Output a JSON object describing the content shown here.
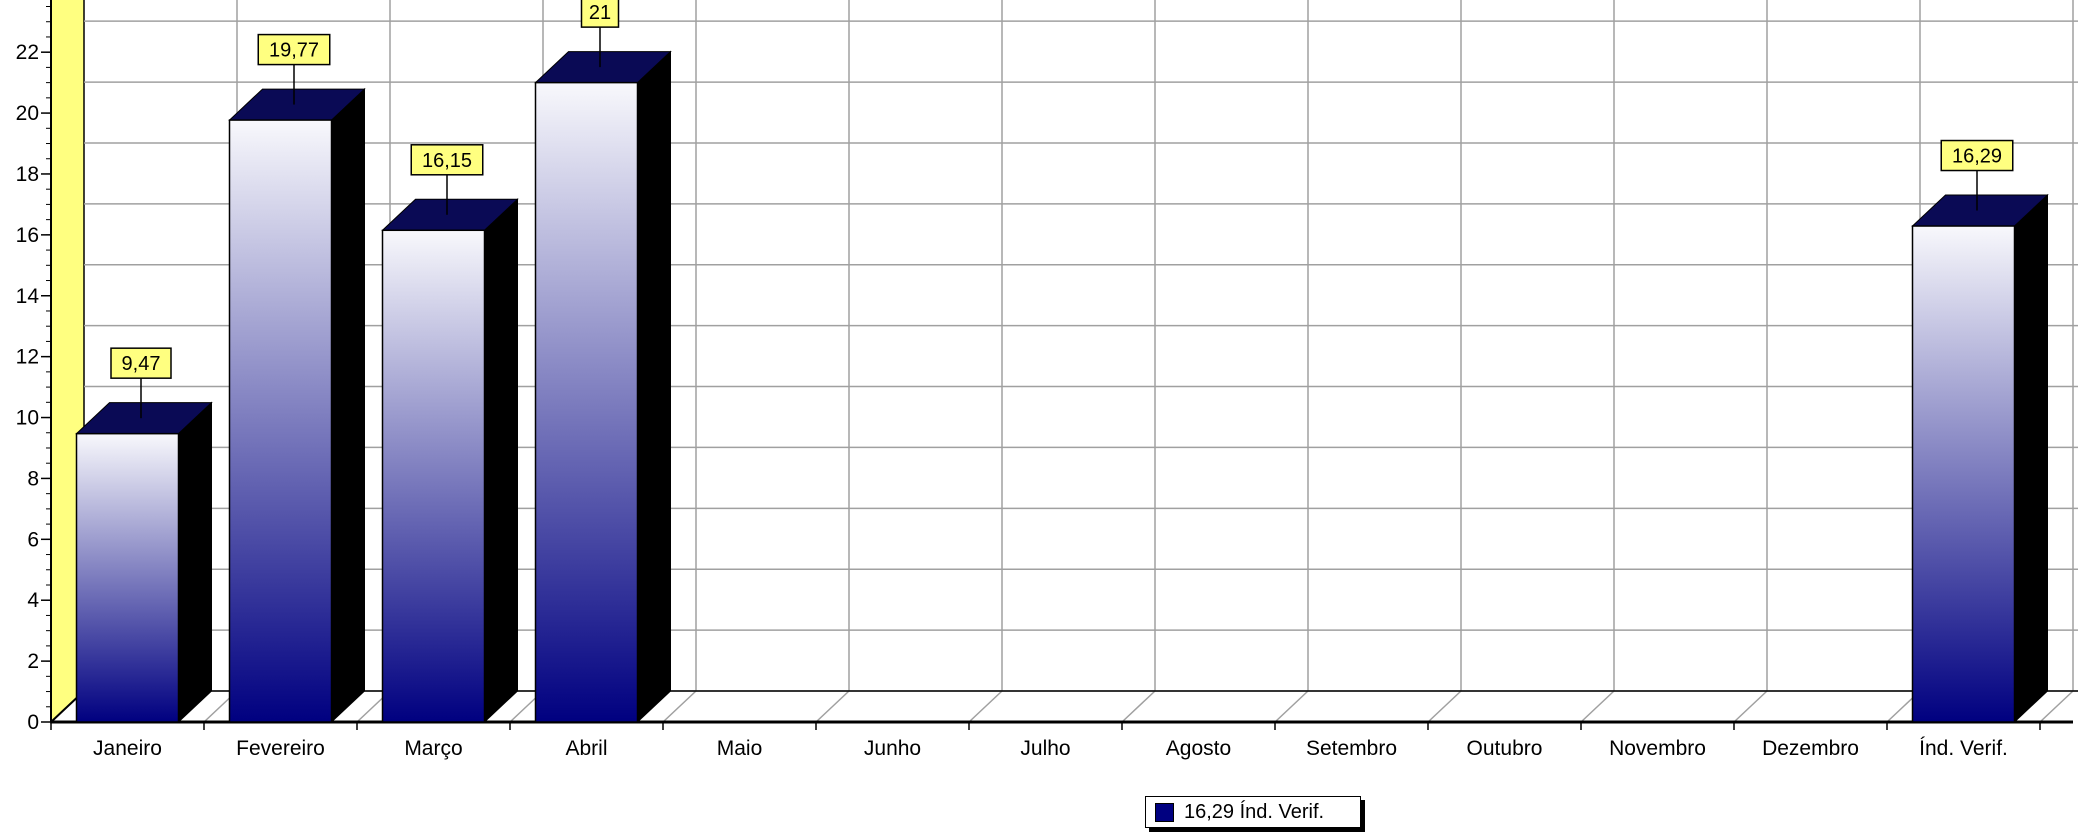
{
  "chart_data": {
    "type": "bar",
    "title": "",
    "xlabel": "",
    "ylabel": "",
    "ylim": [
      0,
      24
    ],
    "y_ticks": [
      0,
      2,
      4,
      6,
      8,
      10,
      12,
      14,
      16,
      18,
      20,
      22
    ],
    "y_tick_labels": [
      "0",
      "2",
      "4",
      "6",
      "8",
      "10",
      "12",
      "14",
      "16",
      "18",
      "20",
      "22"
    ],
    "categories": [
      "Janeiro",
      "Fevereiro",
      "Março",
      "Abril",
      "Maio",
      "Junho",
      "Julho",
      "Agosto",
      "Setembro",
      "Outubro",
      "Novembro",
      "Dezembro",
      "Índ. Verif."
    ],
    "values": [
      9.47,
      19.77,
      16.15,
      21,
      null,
      null,
      null,
      null,
      null,
      null,
      null,
      null,
      16.29
    ],
    "data_labels": [
      "9,47",
      "19,77",
      "16,15",
      "21",
      "",
      "",
      "",
      "",
      "",
      "",
      "",
      "",
      "16,29"
    ],
    "grid": true,
    "style": "3d",
    "legend": {
      "position": "bottom-center",
      "entries": [
        {
          "label": "16,29 Índ. Verif.",
          "color": "#000080"
        }
      ]
    },
    "colors": {
      "bar_top": "#f8f8fc",
      "bar_bottom": "#000080",
      "bar_cap": "#0a0a55",
      "bar_side": "#000000",
      "wall": "#ffff80",
      "data_label_bg": "#ffff80",
      "grid": "#a0a0a0"
    }
  }
}
